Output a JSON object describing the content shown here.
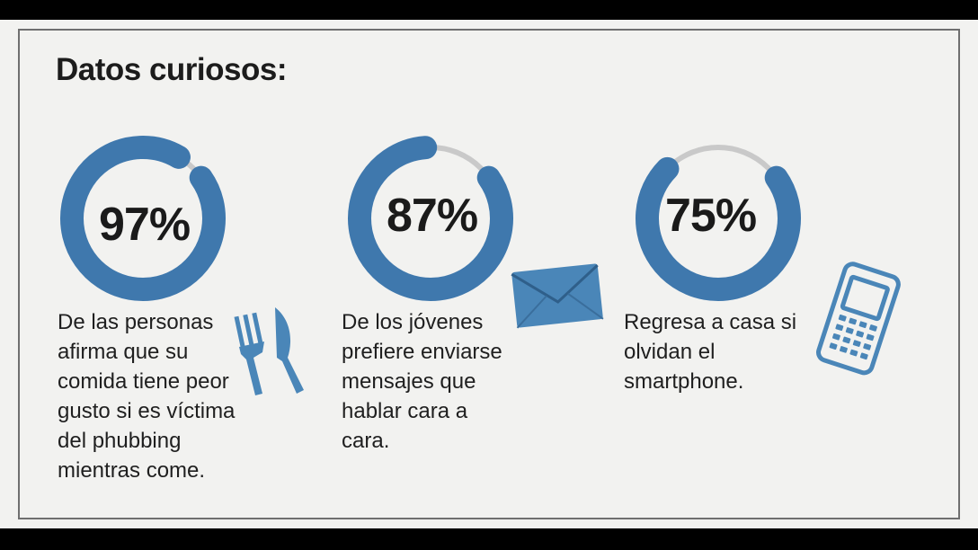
{
  "title": "Datos curiosos:",
  "colors": {
    "accent": "#3f78ad",
    "track": "#c9c9c9",
    "text": "#1c1c1c"
  },
  "stats": [
    {
      "value": "97%",
      "progress": 0.97,
      "description_lines": [
        "De las personas",
        "afirma que su",
        "comida tiene peor",
        "gusto si es víctima",
        "del phubbing",
        "mientras come."
      ],
      "icon": "fork-knife-icon"
    },
    {
      "value": "87%",
      "progress": 0.87,
      "description_lines": [
        "De los jóvenes",
        "prefiere enviarse",
        "mensajes que",
        "hablar cara a",
        "cara."
      ],
      "icon": "envelope-icon"
    },
    {
      "value": "75%",
      "progress": 0.75,
      "description_lines": [
        "Regresa a casa si",
        "olvidan el",
        "smartphone."
      ],
      "icon": "smartphone-icon"
    }
  ]
}
